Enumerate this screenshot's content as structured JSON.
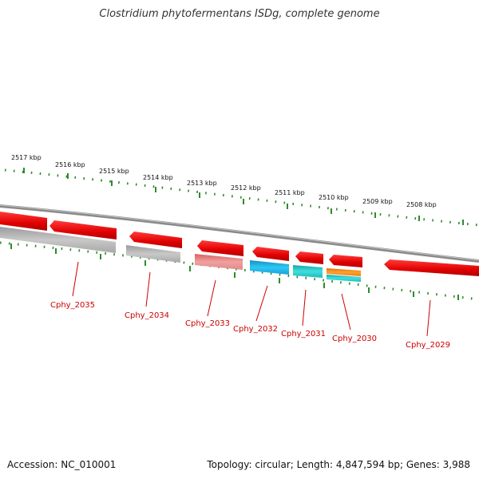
{
  "title": "Clostridium phytofermentans ISDg, complete genome",
  "footer": {
    "accession": "Accession: NC_010001",
    "summary": "Topology: circular; Length: 4,847,594 bp; Genes: 3,988"
  },
  "scale": {
    "labels": [
      "2517 kbp",
      "2516 kbp",
      "2515 kbp",
      "2514 kbp",
      "2513 kbp",
      "2512 kbp",
      "2511 kbp",
      "2510 kbp",
      "2509 kbp",
      "2508 kbp"
    ]
  },
  "genes": [
    {
      "label": "Cphy_2035"
    },
    {
      "label": "Cphy_2034"
    },
    {
      "label": "Cphy_2033"
    },
    {
      "label": "Cphy_2032"
    },
    {
      "label": "Cphy_2031"
    },
    {
      "label": "Cphy_2030"
    },
    {
      "label": "Cphy_2029"
    }
  ],
  "colors": {
    "cds": "#e00000",
    "backbone": "#8a8a8a",
    "ticks": "#2e8b2e",
    "label": "#cc0000",
    "gray_feature": "#b4b4b4",
    "pink_feature": "#e88080",
    "blue_feature": "#19b4e6",
    "cyan_feature": "#23c8c8",
    "orange_feature": "#f08c1e"
  }
}
